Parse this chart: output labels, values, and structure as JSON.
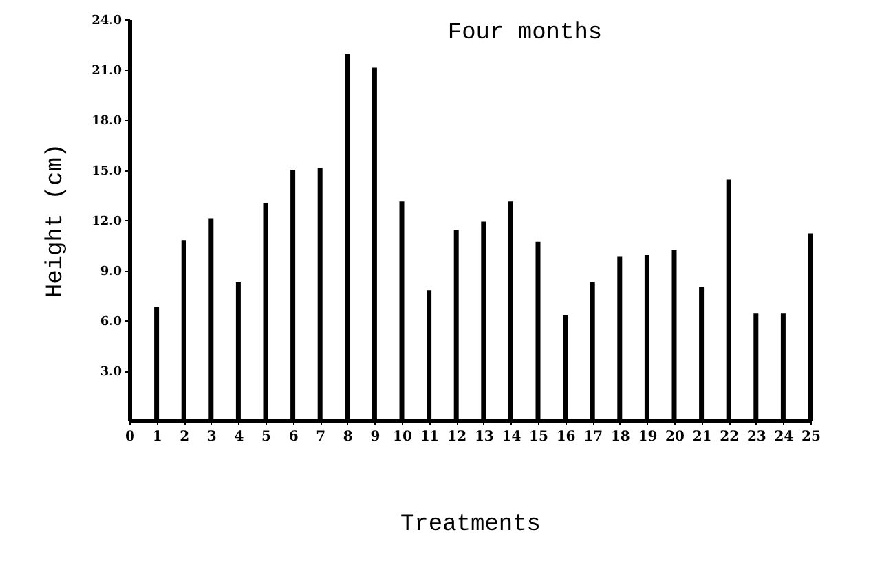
{
  "chart_data": {
    "type": "bar",
    "title": "Four months",
    "xlabel": "Treatments",
    "ylabel": "Height (cm)",
    "color": "#000000",
    "x": [
      1,
      2,
      3,
      4,
      5,
      6,
      7,
      8,
      9,
      10,
      11,
      12,
      13,
      14,
      15,
      16,
      17,
      18,
      19,
      20,
      21,
      22,
      23,
      24,
      25
    ],
    "values": [
      6.8,
      10.8,
      12.1,
      8.3,
      13.0,
      15.0,
      15.1,
      21.9,
      21.1,
      13.1,
      7.8,
      11.4,
      11.9,
      13.1,
      10.7,
      6.3,
      8.3,
      9.8,
      9.9,
      10.2,
      8.0,
      14.4,
      6.4,
      6.4,
      11.2
    ],
    "xlim": [
      0,
      25
    ],
    "xticks": [
      0,
      1,
      2,
      3,
      4,
      5,
      6,
      7,
      8,
      9,
      10,
      11,
      12,
      13,
      14,
      15,
      16,
      17,
      18,
      19,
      20,
      21,
      22,
      23,
      24,
      25
    ],
    "ylim": [
      0,
      24
    ],
    "yticks": [
      {
        "value": 3,
        "label": "3.0"
      },
      {
        "value": 6,
        "label": "6.0"
      },
      {
        "value": 9,
        "label": "9.0"
      },
      {
        "value": 12,
        "label": "12.0"
      },
      {
        "value": 15,
        "label": "15.0"
      },
      {
        "value": 18,
        "label": "18.0"
      },
      {
        "value": 21,
        "label": "21.0"
      },
      {
        "value": 24,
        "label": "24.0"
      }
    ],
    "grid": false
  }
}
